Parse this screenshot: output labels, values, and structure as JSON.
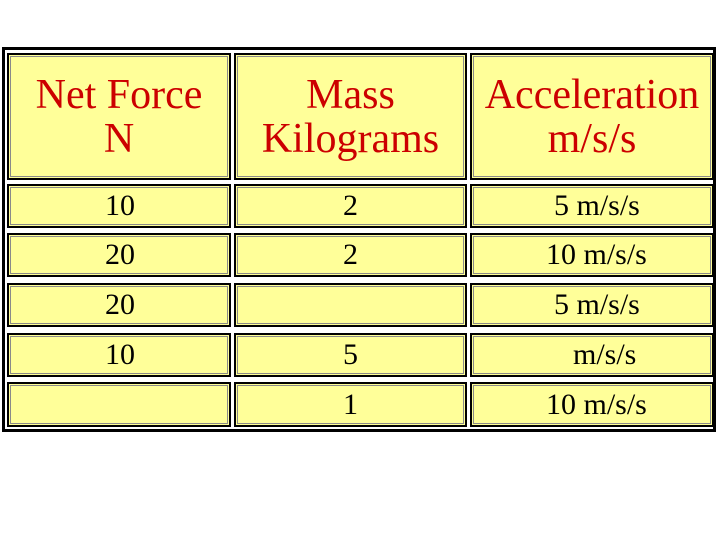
{
  "table": {
    "headers": [
      {
        "line1": "Net Force",
        "line2": "N"
      },
      {
        "line1": "Mass",
        "line2": "Kilograms"
      },
      {
        "line1": "Acceleration",
        "line2": "m/s/s"
      }
    ],
    "rows": [
      [
        "10",
        "2",
        "5 m/s/s"
      ],
      [
        "20",
        "2",
        "10 m/s/s"
      ],
      [
        "20",
        "",
        "5 m/s/s"
      ],
      [
        "10",
        "5",
        "m/s/s"
      ],
      [
        "",
        "1",
        "10 m/s/s"
      ]
    ]
  },
  "colors": {
    "cell_background": "#ffff99",
    "header_text": "#cc0000",
    "body_text": "#000000",
    "border": "#000000"
  }
}
